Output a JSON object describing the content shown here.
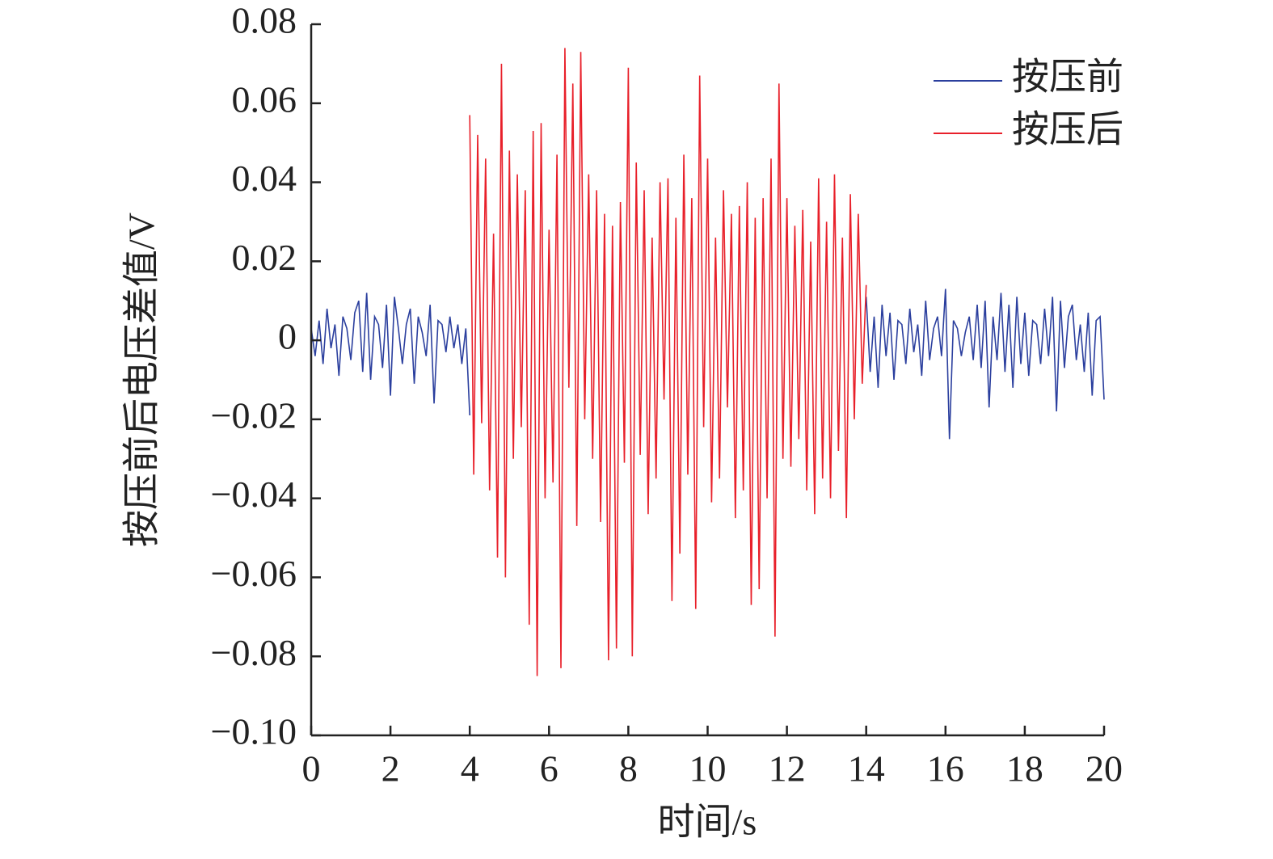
{
  "chart_data": {
    "type": "line",
    "xlabel": "时间/s",
    "ylabel": "按压前后电压差值/V",
    "xlim": [
      0,
      20
    ],
    "xticks": [
      0,
      2,
      4,
      6,
      8,
      10,
      12,
      14,
      16,
      18,
      20
    ],
    "ylim": [
      -0.1,
      0.08
    ],
    "yticks": [
      {
        "value": -0.1,
        "label": "−0.10"
      },
      {
        "value": -0.08,
        "label": "−0.08"
      },
      {
        "value": -0.06,
        "label": "−0.06"
      },
      {
        "value": -0.04,
        "label": "−0.04"
      },
      {
        "value": -0.02,
        "label": "−0.02"
      },
      0,
      0.02,
      0.04,
      0.06,
      0.08
    ],
    "legend": "upper right",
    "x": [
      0,
      0.1,
      0.2,
      0.3,
      0.4,
      0.5,
      0.6,
      0.7,
      0.8,
      0.9,
      1,
      1.1,
      1.2,
      1.3,
      1.4,
      1.5,
      1.6,
      1.7,
      1.8,
      1.9,
      2,
      2.1,
      2.2,
      2.3,
      2.4,
      2.5,
      2.6,
      2.7,
      2.8,
      2.9,
      3,
      3.1,
      3.2,
      3.3,
      3.4,
      3.5,
      3.6,
      3.7,
      3.8,
      3.9,
      4,
      4.1,
      4.2,
      4.3,
      4.4,
      4.5,
      4.6,
      4.7,
      4.8,
      4.9,
      5,
      5.1,
      5.2,
      5.3,
      5.4,
      5.5,
      5.6,
      5.7,
      5.8,
      5.9,
      6,
      6.1,
      6.2,
      6.3,
      6.4,
      6.5,
      6.6,
      6.7,
      6.8,
      6.9,
      7,
      7.1,
      7.2,
      7.3,
      7.4,
      7.5,
      7.6,
      7.7,
      7.8,
      7.9,
      8,
      8.1,
      8.2,
      8.3,
      8.4,
      8.5,
      8.6,
      8.7,
      8.8,
      8.9,
      9,
      9.1,
      9.2,
      9.3,
      9.4,
      9.5,
      9.6,
      9.7,
      9.8,
      9.9,
      10,
      10.1,
      10.2,
      10.3,
      10.4,
      10.5,
      10.6,
      10.7,
      10.8,
      10.9,
      11,
      11.1,
      11.2,
      11.3,
      11.4,
      11.5,
      11.6,
      11.7,
      11.8,
      11.9,
      12,
      12.1,
      12.2,
      12.3,
      12.4,
      12.5,
      12.6,
      12.7,
      12.8,
      12.9,
      13,
      13.1,
      13.2,
      13.3,
      13.4,
      13.5,
      13.6,
      13.7,
      13.8,
      13.9,
      14,
      14.1,
      14.2,
      14.3,
      14.4,
      14.5,
      14.6,
      14.7,
      14.8,
      14.9,
      15,
      15.1,
      15.2,
      15.3,
      15.4,
      15.5,
      15.6,
      15.7,
      15.8,
      15.9,
      16,
      16.1,
      16.2,
      16.3,
      16.4,
      16.5,
      16.6,
      16.7,
      16.8,
      16.9,
      17,
      17.1,
      17.2,
      17.3,
      17.4,
      17.5,
      17.6,
      17.7,
      17.8,
      17.9,
      18,
      18.1,
      18.2,
      18.3,
      18.4,
      18.5,
      18.6,
      18.7,
      18.8,
      18.9,
      19,
      19.1,
      19.2,
      19.3,
      19.4,
      19.5,
      19.6,
      19.7,
      19.8,
      19.9,
      20
    ],
    "series": [
      {
        "name": "按压前",
        "color": "#2b3f9e",
        "values": [
          0.003,
          -0.004,
          0.005,
          -0.006,
          0.008,
          -0.002,
          0.004,
          -0.009,
          0.006,
          0.003,
          -0.005,
          0.007,
          0.01,
          -0.008,
          0.012,
          -0.01,
          0.006,
          0.004,
          -0.007,
          0.009,
          -0.014,
          0.011,
          0.003,
          -0.006,
          0.004,
          0.008,
          -0.011,
          0.006,
          0.002,
          -0.004,
          0.009,
          -0.016,
          0.005,
          0.004,
          -0.003,
          0.006,
          -0.002,
          0.004,
          -0.006,
          0.003,
          -0.019,
          null,
          null,
          null,
          null,
          null,
          null,
          null,
          null,
          null,
          null,
          null,
          null,
          null,
          null,
          null,
          null,
          null,
          null,
          null,
          null,
          null,
          null,
          null,
          null,
          null,
          null,
          null,
          null,
          null,
          null,
          null,
          null,
          null,
          null,
          null,
          null,
          null,
          null,
          null,
          null,
          null,
          null,
          null,
          null,
          null,
          null,
          null,
          null,
          null,
          null,
          null,
          null,
          null,
          null,
          null,
          null,
          null,
          null,
          null,
          null,
          null,
          null,
          null,
          null,
          null,
          null,
          null,
          null,
          null,
          null,
          null,
          null,
          null,
          null,
          null,
          null,
          null,
          null,
          null,
          null,
          null,
          null,
          null,
          null,
          null,
          null,
          null,
          null,
          null,
          null,
          null,
          null,
          null,
          null,
          null,
          null,
          null,
          null,
          null,
          0.011,
          -0.008,
          0.006,
          -0.012,
          0.009,
          -0.004,
          0.007,
          -0.01,
          0.005,
          0.004,
          -0.006,
          0.008,
          -0.003,
          0.004,
          -0.009,
          0.01,
          -0.005,
          0.003,
          0.006,
          -0.004,
          0.013,
          -0.025,
          0.005,
          0.003,
          -0.004,
          0.002,
          0.006,
          -0.005,
          0.009,
          -0.007,
          0.01,
          -0.017,
          0.006,
          -0.005,
          0.012,
          -0.008,
          0.009,
          -0.012,
          0.011,
          -0.006,
          0.007,
          -0.009,
          0.005,
          0.004,
          -0.006,
          0.008,
          -0.004,
          0.011,
          -0.018,
          0.01,
          -0.007,
          0.006,
          0.009,
          -0.005,
          0.004,
          -0.008,
          0.007,
          -0.014,
          0.005,
          0.006,
          -0.015
        ]
      },
      {
        "name": "按压后",
        "color": "#e8202a",
        "values": [
          null,
          null,
          null,
          null,
          null,
          null,
          null,
          null,
          null,
          null,
          null,
          null,
          null,
          null,
          null,
          null,
          null,
          null,
          null,
          null,
          null,
          null,
          null,
          null,
          null,
          null,
          null,
          null,
          null,
          null,
          null,
          null,
          null,
          null,
          null,
          null,
          null,
          null,
          null,
          null,
          0.057,
          -0.034,
          0.052,
          -0.021,
          0.046,
          -0.038,
          0.027,
          -0.055,
          0.07,
          -0.06,
          0.048,
          -0.03,
          0.042,
          -0.022,
          0.038,
          -0.072,
          0.053,
          -0.085,
          0.055,
          -0.04,
          0.028,
          -0.036,
          0.047,
          -0.083,
          0.074,
          -0.012,
          0.065,
          -0.047,
          0.073,
          -0.02,
          0.042,
          -0.03,
          0.038,
          -0.046,
          0.032,
          -0.081,
          0.029,
          -0.078,
          0.035,
          -0.031,
          0.069,
          -0.08,
          0.045,
          -0.029,
          0.038,
          -0.044,
          0.026,
          -0.035,
          0.04,
          -0.015,
          0.041,
          -0.066,
          0.031,
          -0.054,
          0.047,
          -0.034,
          0.036,
          -0.068,
          0.067,
          -0.022,
          0.046,
          -0.041,
          0.026,
          -0.035,
          0.038,
          -0.017,
          0.032,
          -0.045,
          0.034,
          -0.038,
          0.04,
          -0.067,
          0.031,
          -0.063,
          0.036,
          -0.04,
          0.046,
          -0.075,
          0.065,
          -0.03,
          0.036,
          -0.032,
          0.029,
          -0.025,
          0.033,
          -0.038,
          0.025,
          -0.044,
          0.041,
          -0.035,
          0.03,
          -0.04,
          0.042,
          -0.028,
          0.026,
          -0.045,
          0.037,
          -0.02,
          0.032,
          -0.011,
          0.014,
          null,
          null,
          null,
          null,
          null,
          null,
          null,
          null,
          null,
          null,
          null,
          null,
          null,
          null,
          null,
          null,
          null,
          null,
          null,
          null,
          null,
          null,
          null,
          null,
          null,
          null,
          null,
          null,
          null,
          null,
          null,
          null,
          null,
          null,
          null,
          null,
          null,
          null,
          null,
          null,
          null,
          null,
          null,
          null,
          null,
          null,
          null,
          null,
          null,
          null,
          null,
          null,
          null,
          null,
          null,
          null,
          null,
          null,
          null,
          null
        ]
      }
    ]
  }
}
